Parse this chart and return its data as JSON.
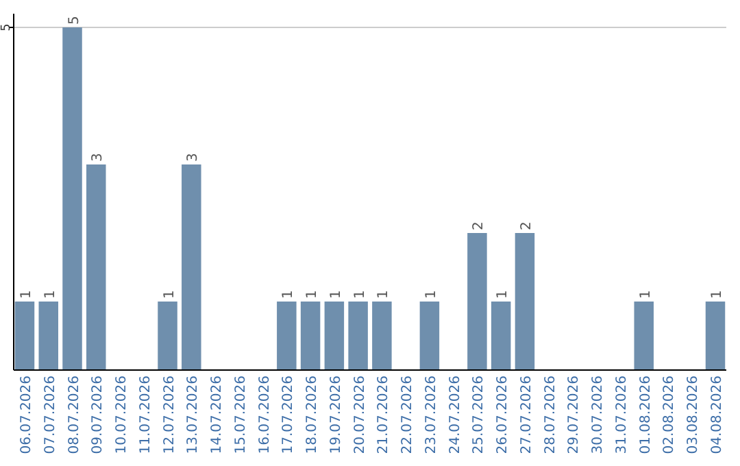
{
  "chart_data": {
    "type": "bar",
    "categories": [
      "06.07.2026",
      "07.07.2026",
      "08.07.2026",
      "09.07.2026",
      "10.07.2026",
      "11.07.2026",
      "12.07.2026",
      "13.07.2026",
      "14.07.2026",
      "15.07.2026",
      "16.07.2026",
      "17.07.2026",
      "18.07.2026",
      "19.07.2026",
      "20.07.2026",
      "21.07.2026",
      "22.07.2026",
      "23.07.2026",
      "24.07.2026",
      "25.07.2026",
      "26.07.2026",
      "27.07.2026",
      "28.07.2026",
      "29.07.2026",
      "30.07.2026",
      "31.07.2026",
      "01.08.2026",
      "02.08.2026",
      "03.08.2026",
      "04.08.2026"
    ],
    "values": [
      1,
      1,
      5,
      3,
      0,
      0,
      1,
      3,
      0,
      0,
      0,
      1,
      1,
      1,
      1,
      1,
      0,
      1,
      0,
      2,
      1,
      2,
      0,
      0,
      0,
      0,
      1,
      0,
      0,
      1
    ],
    "value_labels": [
      "1",
      "1",
      "5",
      "3",
      null,
      null,
      "1",
      "3",
      null,
      null,
      null,
      "1",
      "1",
      "1",
      "1",
      "1",
      null,
      "1",
      null,
      "2",
      "1",
      "2",
      null,
      null,
      null,
      null,
      "1",
      null,
      null,
      "1"
    ],
    "color": "#6f8fad",
    "ylim": [
      0,
      5.2
    ],
    "yticks": [
      5
    ],
    "grid": "y"
  }
}
